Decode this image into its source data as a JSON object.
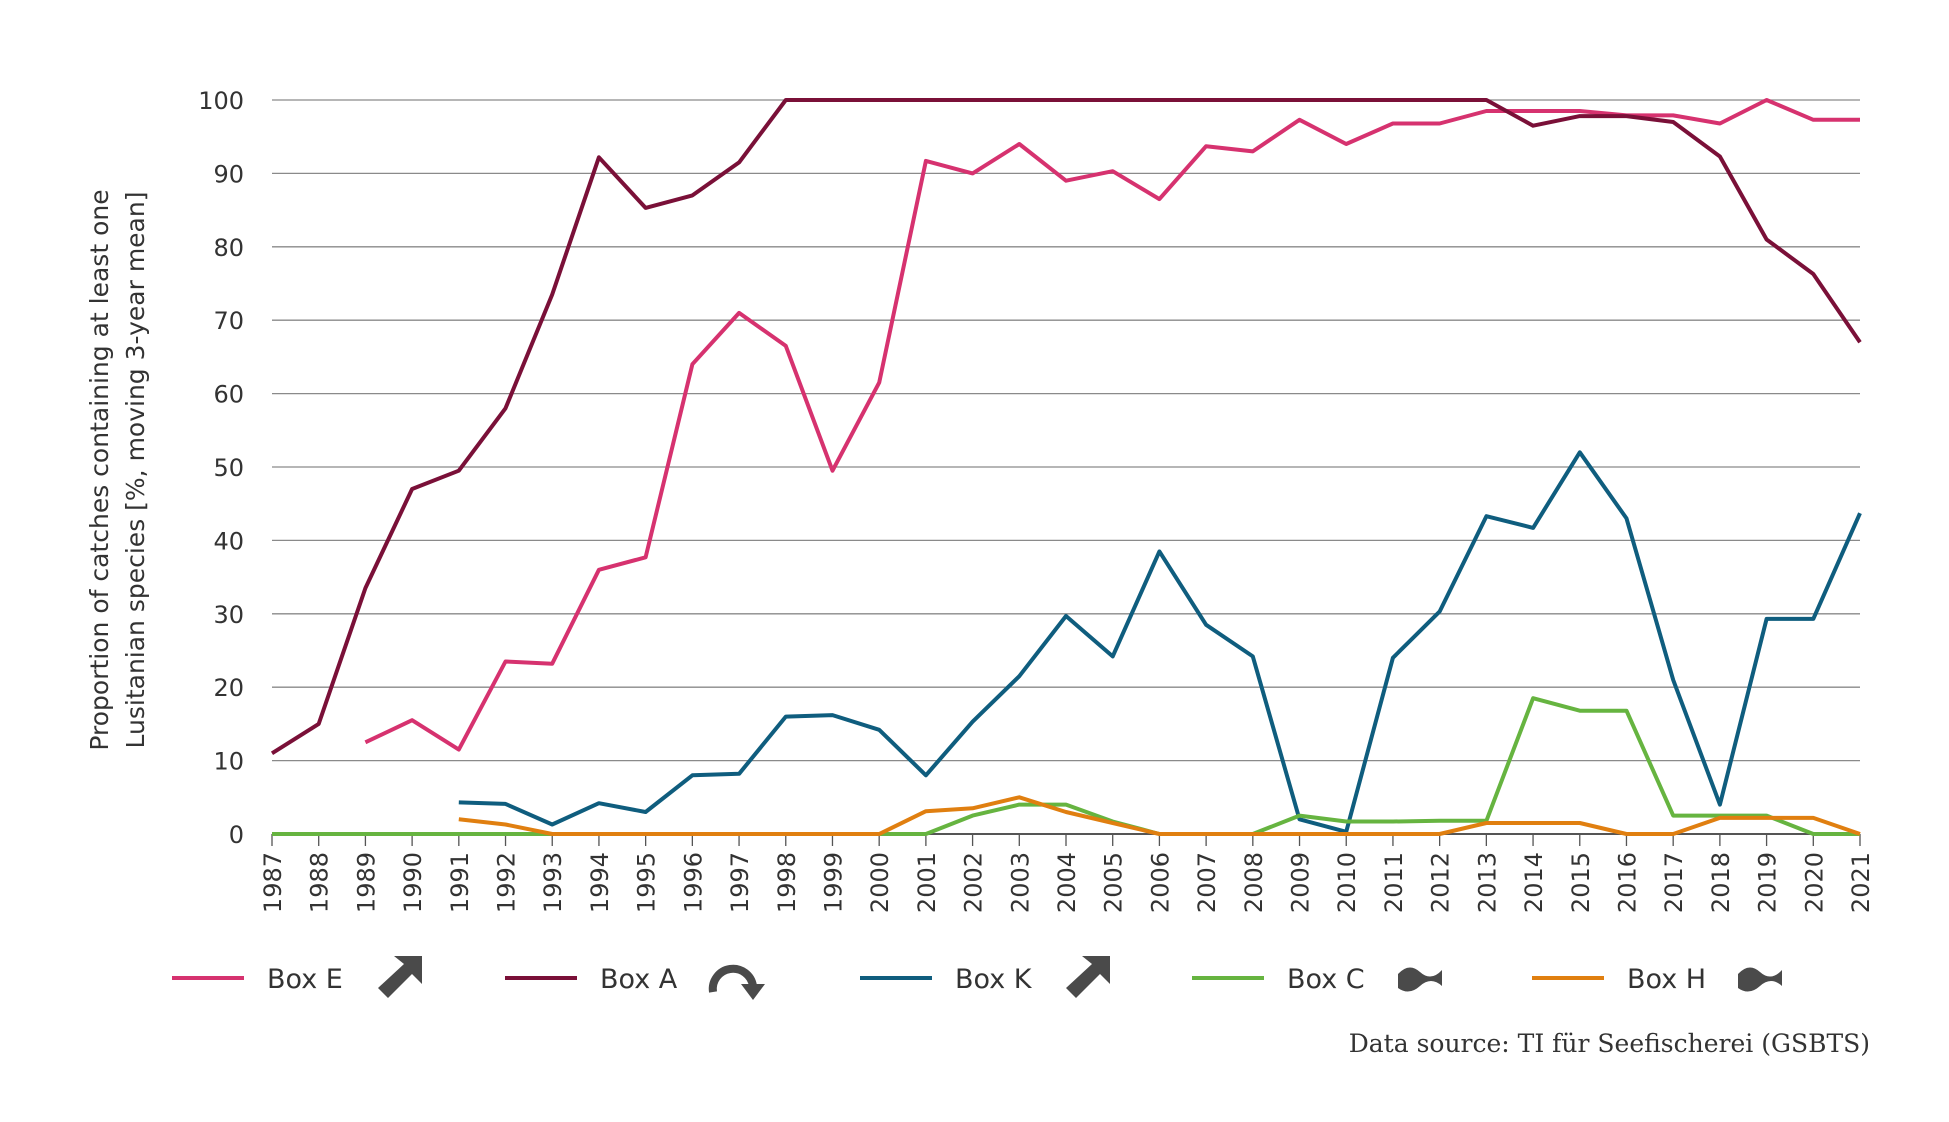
{
  "chart_data": {
    "type": "line",
    "xlabel": "",
    "ylabel_lines": [
      "Proportion of catches containing at least one",
      "Lusitanian species [%, moving 3-year mean]"
    ],
    "ylim": [
      0,
      100
    ],
    "yticks": [
      0,
      10,
      20,
      30,
      40,
      50,
      60,
      70,
      80,
      90,
      100
    ],
    "x": [
      1987,
      1988,
      1989,
      1990,
      1991,
      1992,
      1993,
      1994,
      1995,
      1996,
      1997,
      1998,
      1999,
      2000,
      2001,
      2002,
      2003,
      2004,
      2005,
      2006,
      2007,
      2008,
      2009,
      2010,
      2011,
      2012,
      2013,
      2014,
      2015,
      2016,
      2017,
      2018,
      2019,
      2020,
      2021
    ],
    "grid": "horizontal",
    "legend_position": "bottom",
    "series": [
      {
        "name": "Box E",
        "color": "#d6326f",
        "trend_icon": "arrow-up-right-icon",
        "values": [
          null,
          null,
          12.5,
          15.5,
          11.5,
          23.5,
          23.2,
          36,
          37.7,
          64,
          71,
          66.5,
          49.5,
          61.5,
          91.7,
          90,
          94,
          89,
          90.3,
          86.5,
          93.7,
          93,
          97.3,
          94,
          96.8,
          96.8,
          98.5,
          98.5,
          98.5,
          97.9,
          97.9,
          96.8,
          100,
          97.3,
          97.3
        ]
      },
      {
        "name": "Box A",
        "color": "#7a1038",
        "trend_icon": "curved-arrow-down-icon",
        "values": [
          11,
          15,
          33.5,
          47,
          49.5,
          58,
          73.5,
          92.2,
          85.3,
          87,
          91.5,
          100,
          100,
          100,
          100,
          100,
          100,
          100,
          100,
          100,
          100,
          100,
          100,
          100,
          100,
          100,
          100,
          96.5,
          97.8,
          97.8,
          97,
          92.3,
          81,
          76.3,
          67
        ]
      },
      {
        "name": "Box K",
        "color": "#0f5d7e",
        "trend_icon": "arrow-up-right-icon",
        "values": [
          null,
          null,
          null,
          null,
          4.3,
          4.1,
          1.3,
          4.2,
          3,
          8,
          8.2,
          16,
          16.2,
          14.2,
          8,
          15.3,
          21.5,
          29.7,
          24.2,
          38.5,
          28.5,
          24.2,
          2,
          0.3,
          24,
          30.3,
          43.3,
          41.7,
          52,
          43,
          21,
          4,
          29.3,
          29.3,
          43.7
        ]
      },
      {
        "name": "Box C",
        "color": "#66b440",
        "trend_icon": "tilde-wave-icon",
        "values": [
          0,
          0,
          0,
          0,
          0,
          0,
          0,
          0,
          0,
          0,
          0,
          0,
          0,
          0,
          0,
          2.5,
          4,
          4,
          1.7,
          0,
          0,
          0,
          2.5,
          1.7,
          1.7,
          1.8,
          1.8,
          18.5,
          16.8,
          16.8,
          2.5,
          2.5,
          2.5,
          0,
          0
        ]
      },
      {
        "name": "Box H",
        "color": "#e07f10",
        "trend_icon": "tilde-wave-icon",
        "values": [
          null,
          null,
          null,
          null,
          2,
          1.3,
          0,
          0,
          0,
          0,
          0,
          0,
          0,
          0,
          3.1,
          3.5,
          5,
          3,
          1.5,
          0,
          0,
          0,
          0,
          0,
          0,
          0,
          1.5,
          1.5,
          1.5,
          0,
          0,
          2.2,
          2.2,
          2.2,
          0
        ]
      }
    ]
  },
  "source_note": "Data source: TI für Seefischerei (GSBTS)"
}
